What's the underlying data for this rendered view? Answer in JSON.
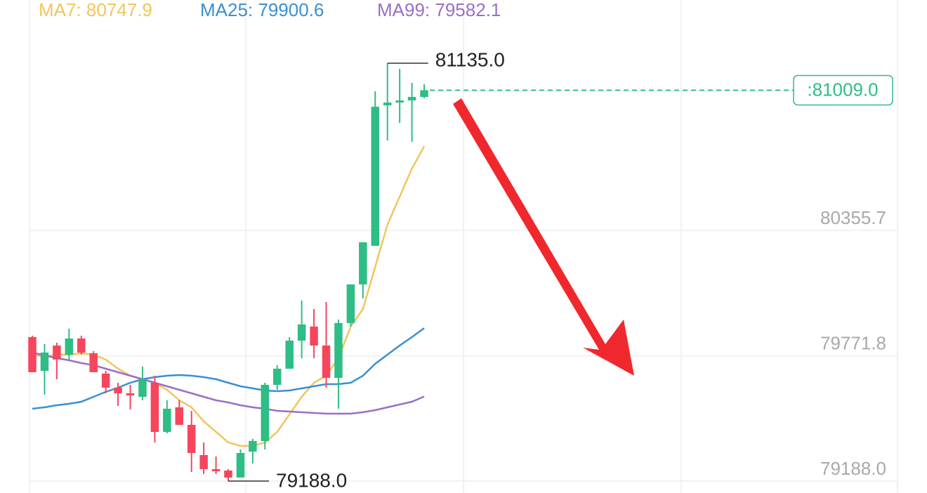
{
  "chart_data": {
    "type": "candlestick",
    "up_color": "#2ebd85",
    "down_color": "#f6465d",
    "ylim": [
      79132.4,
      81429.3
    ],
    "yticks": [
      {
        "value": 79188,
        "label": "79188.0"
      },
      79771.8,
      80355.7
    ],
    "grid": true,
    "candles": [
      {
        "open": 79858.8,
        "high": 79865.3,
        "low": 79695.2,
        "close": 79695.2
      },
      {
        "open": 79701.7,
        "high": 79826.0,
        "low": 79590.5,
        "close": 79786.8
      },
      {
        "open": 79819.5,
        "high": 79832.6,
        "low": 79662.4,
        "close": 79754.1
      },
      {
        "open": 79777.0,
        "high": 79898.0,
        "low": 79754.1,
        "close": 79852.2
      },
      {
        "open": 79852.2,
        "high": 79865.3,
        "low": 79777.0,
        "close": 79786.8
      },
      {
        "open": 79783.5,
        "high": 79793.3,
        "low": 79695.2,
        "close": 79695.2
      },
      {
        "open": 79688.6,
        "high": 79701.7,
        "low": 79597.0,
        "close": 79623.2
      },
      {
        "open": 79623.2,
        "high": 79646.1,
        "low": 79538.1,
        "close": 79597.0
      },
      {
        "open": 79597.0,
        "high": 79636.3,
        "low": 79521.7,
        "close": 79587.2
      },
      {
        "open": 79580.6,
        "high": 79721.3,
        "low": 79564.3,
        "close": 79662.4
      },
      {
        "open": 79646.1,
        "high": 79678.8,
        "low": 79368.0,
        "close": 79417.0
      },
      {
        "open": 79417.0,
        "high": 79564.3,
        "low": 79410.5,
        "close": 79525.0
      },
      {
        "open": 79531.6,
        "high": 79564.3,
        "low": 79449.8,
        "close": 79449.8
      },
      {
        "open": 79449.8,
        "high": 79515.2,
        "low": 79230.5,
        "close": 79318.9
      },
      {
        "open": 79309.1,
        "high": 79368.0,
        "low": 79220.7,
        "close": 79243.6
      },
      {
        "open": 79243.6,
        "high": 79302.5,
        "low": 79220.7,
        "close": 79237.1
      },
      {
        "open": 79237.1,
        "high": 79243.6,
        "low": 79188.0,
        "close": 79204.4
      },
      {
        "open": 79204.4,
        "high": 79335.2,
        "low": 79204.4,
        "close": 79318.9
      },
      {
        "open": 79325.4,
        "high": 79384.3,
        "low": 79269.8,
        "close": 79374.5
      },
      {
        "open": 79374.5,
        "high": 79646.1,
        "low": 79335.2,
        "close": 79636.3
      },
      {
        "open": 79636.3,
        "high": 79727.9,
        "low": 79613.4,
        "close": 79711.5
      },
      {
        "open": 79711.5,
        "high": 79858.8,
        "low": 79711.5,
        "close": 79842.4
      },
      {
        "open": 79842.4,
        "high": 80028.9,
        "low": 79760.6,
        "close": 79917.7
      },
      {
        "open": 79907.8,
        "high": 79989.6,
        "low": 79760.6,
        "close": 79819.5
      },
      {
        "open": 79819.5,
        "high": 80022.4,
        "low": 79623.2,
        "close": 79669.0
      },
      {
        "open": 79669.0,
        "high": 79940.6,
        "low": 79525.0,
        "close": 79924.2
      },
      {
        "open": 79924.2,
        "high": 80104.2,
        "low": 79907.8,
        "close": 80104.2
      },
      {
        "open": 80104.2,
        "high": 80300.5,
        "low": 80038.7,
        "close": 80300.5
      },
      {
        "open": 80284.1,
        "high": 81004.0,
        "low": 80284.1,
        "close": 80932.0
      },
      {
        "open": 80938.5,
        "high": 81135.0,
        "low": 80774.9,
        "close": 80951.6
      },
      {
        "open": 80951.6,
        "high": 81108.7,
        "low": 80856.7,
        "close": 80961.4
      },
      {
        "open": 80961.4,
        "high": 81043.2,
        "low": 80768.4,
        "close": 80977.8
      },
      {
        "open": 80977.8,
        "high": 81036.7,
        "low": 80971.2,
        "close": 81009.0
      }
    ],
    "series": [
      {
        "name": "MA7: 80747.9",
        "color": "#f2c55c",
        "values": [
          79777.0,
          79767.1,
          79777.0,
          79777.0,
          79783.5,
          79777.0,
          79754.1,
          79711.5,
          79678.8,
          79662.4,
          79646.1,
          79613.4,
          79564.3,
          79531.6,
          79466.1,
          79417.0,
          79368.0,
          79351.6,
          79351.6,
          79368.0,
          79417.0,
          79498.8,
          79580.6,
          79646.1,
          79678.8,
          79760.6,
          79907.8,
          79989.6,
          80186.0,
          80382.3,
          80513.2,
          80644.0,
          80747.9
        ]
      },
      {
        "name": "MA25: 79900.6",
        "color": "#3a8fd1",
        "values": [
          79525.0,
          79531.6,
          79541.4,
          79547.9,
          79557.7,
          79580.6,
          79603.5,
          79623.2,
          79646.1,
          79662.4,
          79672.3,
          79678.8,
          79682.1,
          79678.8,
          79672.3,
          79662.4,
          79646.1,
          79629.7,
          79619.9,
          79610.1,
          79606.8,
          79610.1,
          79619.9,
          79629.7,
          79639.5,
          79639.5,
          79646.1,
          79678.8,
          79734.4,
          79777.0,
          79819.5,
          79858.8,
          79900.6
        ]
      },
      {
        "name": "MA99: 79582.1",
        "color": "#9a6fc6",
        "values": [
          79786.8,
          79773.7,
          79760.6,
          79750.8,
          79737.7,
          79727.9,
          79711.5,
          79695.2,
          79678.8,
          79662.4,
          79646.1,
          79629.7,
          79613.4,
          79597.0,
          79580.6,
          79564.3,
          79554.5,
          79541.4,
          79531.6,
          79525.0,
          79515.2,
          79511.9,
          79508.7,
          79505.4,
          79502.1,
          79502.1,
          79502.1,
          79508.7,
          79518.5,
          79531.6,
          79544.6,
          79557.7,
          79582.1
        ]
      }
    ],
    "high_label": "81135.0",
    "low_label": "79188.0",
    "last_price_label": ":81009.0"
  }
}
